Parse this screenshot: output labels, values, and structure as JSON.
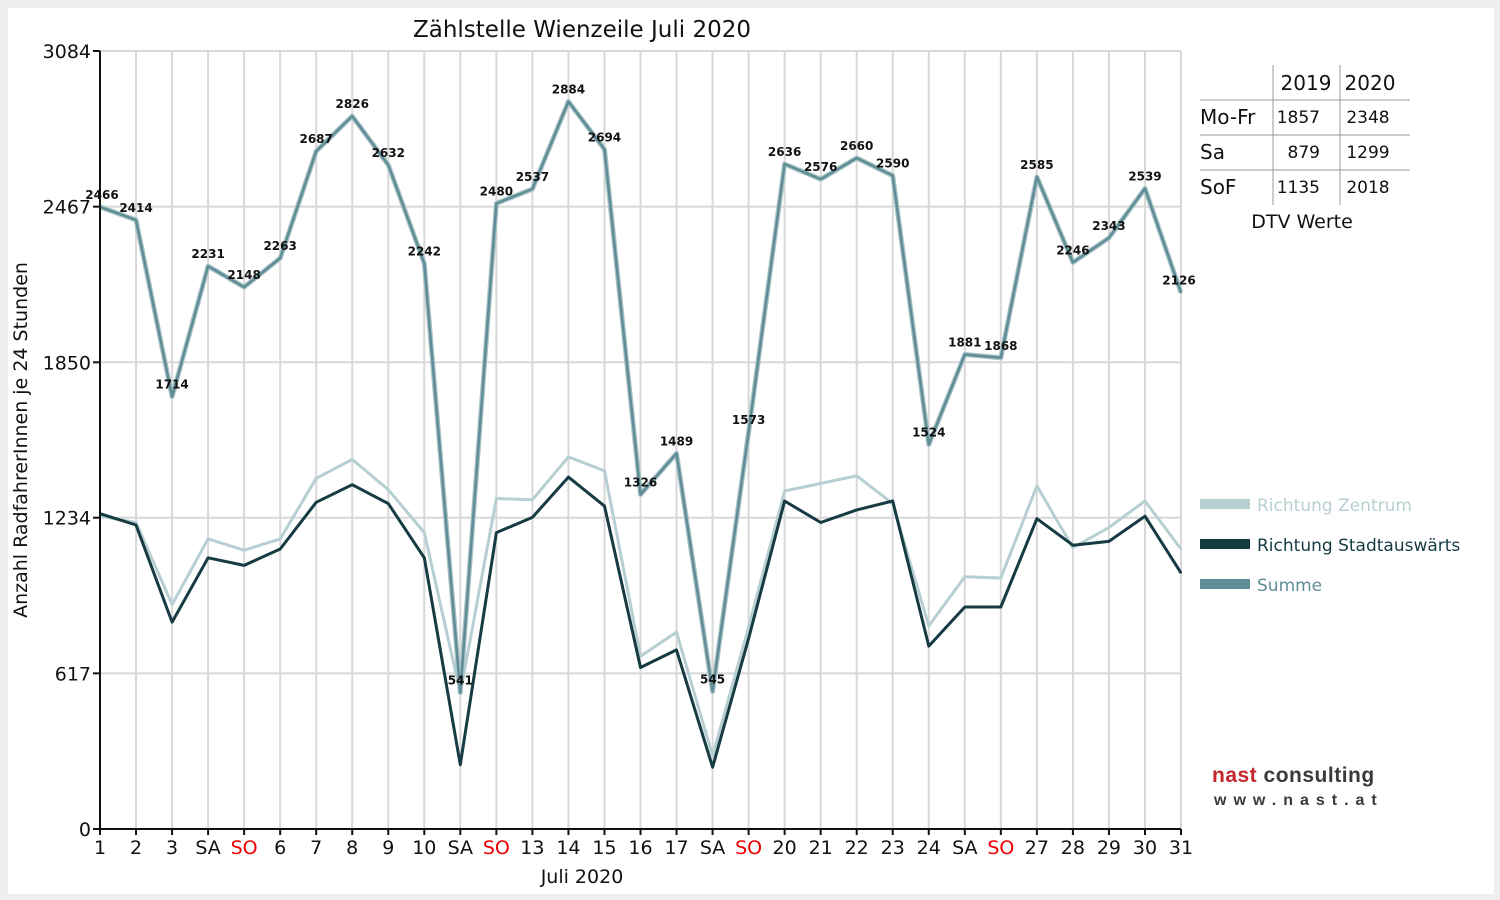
{
  "chart_data": {
    "type": "line",
    "title": "Zählstelle Wienzeile Juli 2020",
    "xlabel": "Juli 2020",
    "ylabel": "Anzahl RadfahrerInnen je 24 Stunden",
    "ylim": [
      0,
      3084
    ],
    "yticks": [
      0,
      617,
      1234,
      1850,
      2467,
      3084
    ],
    "grid": true,
    "legend_position": "right",
    "categories": [
      "1",
      "2",
      "3",
      "SA",
      "SO",
      "6",
      "7",
      "8",
      "9",
      "10",
      "SA",
      "SO",
      "13",
      "14",
      "15",
      "16",
      "17",
      "SA",
      "SO",
      "20",
      "21",
      "22",
      "23",
      "24",
      "SA",
      "SO",
      "27",
      "28",
      "29",
      "30",
      "31"
    ],
    "weekend_color": "#ee0000",
    "series": [
      {
        "name": "Richtung Zentrum",
        "color": "#b7cfd2",
        "values": [
          1240,
          1215,
          890,
          1150,
          1105,
          1150,
          1390,
          1465,
          1345,
          1175,
          540,
          1310,
          1305,
          1475,
          1420,
          685,
          780,
          290,
          800,
          1340,
          1370,
          1400,
          1290,
          805,
          1000,
          995,
          1360,
          1115,
          1195,
          1300,
          1110
        ]
      },
      {
        "name": "Richtung Stadtauswärts",
        "color": "#163b43",
        "values": [
          1250,
          1205,
          820,
          1075,
          1045,
          1110,
          1295,
          1365,
          1290,
          1075,
          255,
          1175,
          1235,
          1395,
          1280,
          640,
          710,
          245,
          755,
          1300,
          1215,
          1265,
          1300,
          725,
          880,
          880,
          1230,
          1125,
          1140,
          1240,
          1015
        ]
      },
      {
        "name": "Summe",
        "color": "#5f8d95",
        "values": [
          2466,
          2414,
          1714,
          2231,
          2148,
          2263,
          2687,
          2826,
          2632,
          2242,
          541,
          2480,
          2537,
          2884,
          2694,
          1326,
          1489,
          545,
          1573,
          2636,
          2576,
          2660,
          2590,
          1524,
          1881,
          1868,
          2585,
          2246,
          2343,
          2539,
          2126
        ],
        "data_labels": [
          "2466",
          "2414",
          "1714",
          "2231",
          "2148",
          "2263",
          "2687",
          "2826",
          "2632",
          "2242",
          "541",
          "2480",
          "2537",
          "2884",
          "2694",
          "1326",
          "1489",
          "545",
          "1573",
          "2636",
          "2576",
          "2660",
          "2590",
          "1524",
          "1881",
          "1868",
          "2585",
          "2246",
          "2343",
          "2539",
          "2126"
        ]
      }
    ]
  },
  "dtv_table": {
    "headers": [
      "",
      "2019",
      "2020"
    ],
    "rows": [
      [
        "Mo-Fr",
        "1857",
        "2348"
      ],
      [
        "Sa",
        "879",
        "1299"
      ],
      [
        "SoF",
        "1135",
        "2018"
      ]
    ],
    "caption": "DTV Werte"
  },
  "logo": {
    "brand_part1": "nast",
    "brand_part2": " consulting",
    "url": "www.nast.at"
  }
}
